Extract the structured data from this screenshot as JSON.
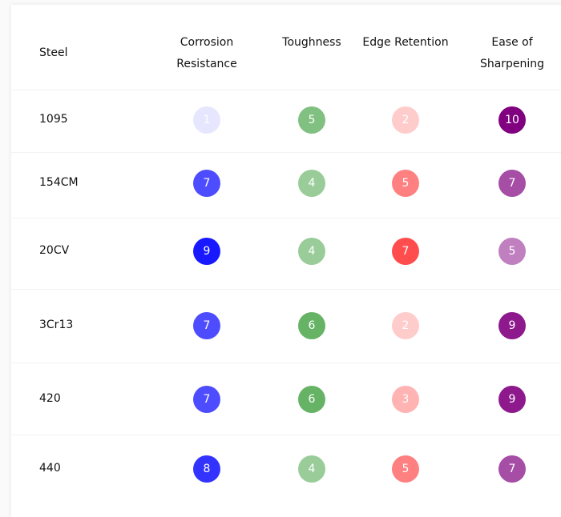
{
  "table": {
    "headers": [
      "Steel",
      "Corrosion Resistance",
      "Toughness",
      "Edge Retention",
      "Ease of Sharpening"
    ],
    "rows": [
      [
        "1095",
        1,
        5,
        2,
        10
      ],
      [
        "154CM",
        7,
        4,
        5,
        7
      ],
      [
        "20CV",
        9,
        4,
        7,
        5
      ],
      [
        "3Cr13",
        7,
        6,
        2,
        9
      ],
      [
        "420",
        7,
        6,
        3,
        9
      ],
      [
        "440",
        8,
        4,
        5,
        7
      ]
    ]
  }
}
